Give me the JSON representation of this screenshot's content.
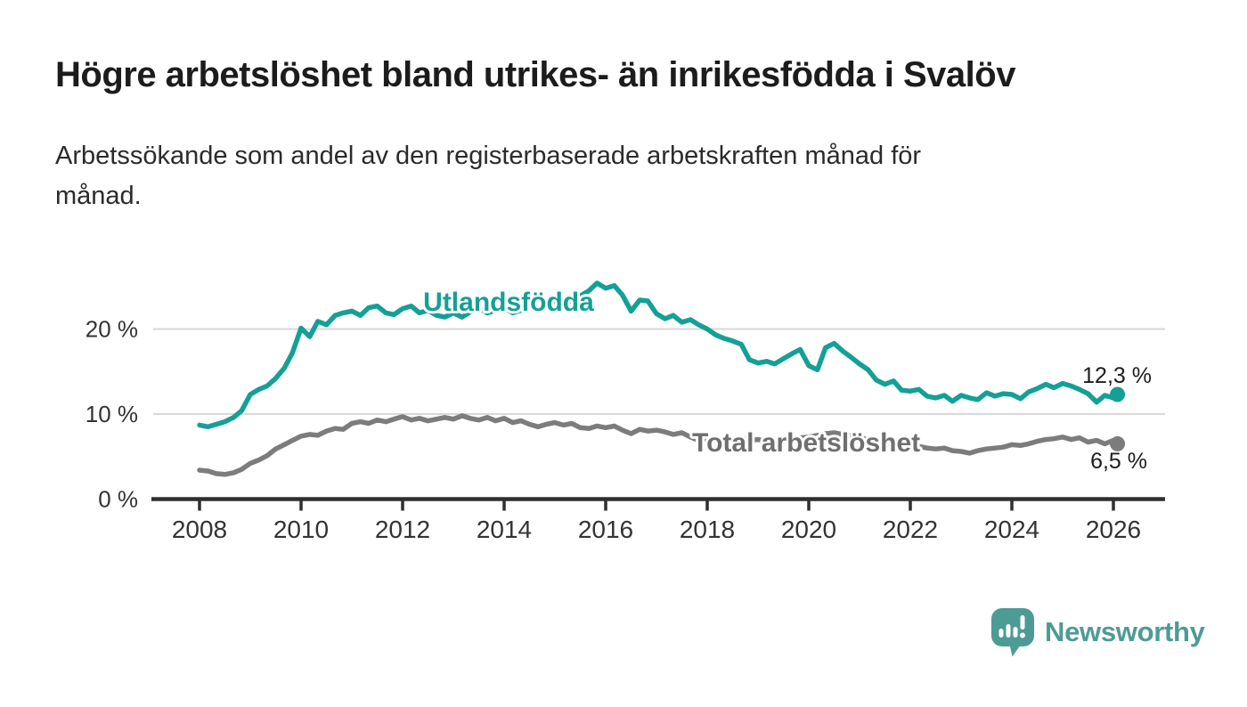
{
  "title": "Högre arbetslöshet bland utrikes- än inrikesfödda i Svalöv",
  "subtitle_lines": [
    "Arbetssökande som andel av den registerbaserade arbetskraften månad för",
    "månad."
  ],
  "branding": {
    "logo_text": "Newsworthy",
    "logo_color": "#4d9b95",
    "logo_icon": "bar-chart-speech-bubble-icon"
  },
  "colors": {
    "foreign_born_line": "#14a096",
    "total_line": "#7c7c7c",
    "total_label": "#6f6f6f",
    "axis": "#2f2f2f",
    "gridline": "#d8d8d8",
    "tick_label": "#333333",
    "value_label": "#1d1d1d"
  },
  "chart_data": {
    "type": "line",
    "title": "Högre arbetslöshet bland utrikes- än inrikesfödda i Svalöv",
    "subtitle": "Arbetssökande som andel av den registerbaserade arbetskraften månad för månad.",
    "unit": "%",
    "grid": "horizontal",
    "legend": "inline-labels-on-lines",
    "x_range": [
      2007.1,
      2026.9
    ],
    "ylim": [
      0,
      27
    ],
    "x_ticks": [
      2008,
      2010,
      2012,
      2014,
      2016,
      2018,
      2020,
      2022,
      2024,
      2026
    ],
    "y_ticks": [
      {
        "value": 0,
        "label": "0 %"
      },
      {
        "value": 10,
        "label": "10 %"
      },
      {
        "value": 20,
        "label": "20 %"
      }
    ],
    "series": [
      {
        "name": "Utlandsfödda",
        "color": "#14a096",
        "end_value": 12.3,
        "end_label": "12,3 %",
        "points": [
          [
            2008.0,
            8.7
          ],
          [
            2008.17,
            8.5
          ],
          [
            2008.33,
            8.8
          ],
          [
            2008.5,
            9.1
          ],
          [
            2008.67,
            9.6
          ],
          [
            2008.83,
            10.4
          ],
          [
            2009.0,
            12.3
          ],
          [
            2009.17,
            12.9
          ],
          [
            2009.33,
            13.3
          ],
          [
            2009.5,
            14.2
          ],
          [
            2009.67,
            15.4
          ],
          [
            2009.83,
            17.2
          ],
          [
            2010.0,
            20.1
          ],
          [
            2010.17,
            19.1
          ],
          [
            2010.33,
            20.9
          ],
          [
            2010.5,
            20.5
          ],
          [
            2010.67,
            21.6
          ],
          [
            2010.83,
            21.9
          ],
          [
            2011.0,
            22.1
          ],
          [
            2011.17,
            21.6
          ],
          [
            2011.33,
            22.5
          ],
          [
            2011.5,
            22.7
          ],
          [
            2011.67,
            21.9
          ],
          [
            2011.83,
            21.7
          ],
          [
            2012.0,
            22.4
          ],
          [
            2012.17,
            22.7
          ],
          [
            2012.33,
            21.9
          ],
          [
            2012.5,
            22.2
          ],
          [
            2012.67,
            21.6
          ],
          [
            2012.83,
            21.4
          ],
          [
            2013.0,
            21.9
          ],
          [
            2013.17,
            21.4
          ],
          [
            2013.33,
            22.0
          ],
          [
            2013.5,
            22.5
          ],
          [
            2013.67,
            21.9
          ],
          [
            2013.83,
            22.2
          ],
          [
            2014.0,
            22.5
          ],
          [
            2014.17,
            21.9
          ],
          [
            2014.33,
            22.2
          ],
          [
            2014.5,
            22.7
          ],
          [
            2014.67,
            22.4
          ],
          [
            2014.83,
            22.9
          ],
          [
            2015.0,
            23.2
          ],
          [
            2015.17,
            22.8
          ],
          [
            2015.33,
            23.4
          ],
          [
            2015.5,
            23.9
          ],
          [
            2015.67,
            24.5
          ],
          [
            2015.83,
            25.4
          ],
          [
            2016.0,
            24.8
          ],
          [
            2016.17,
            25.1
          ],
          [
            2016.33,
            24.0
          ],
          [
            2016.5,
            22.1
          ],
          [
            2016.67,
            23.4
          ],
          [
            2016.83,
            23.3
          ],
          [
            2017.0,
            21.8
          ],
          [
            2017.17,
            21.2
          ],
          [
            2017.33,
            21.6
          ],
          [
            2017.5,
            20.8
          ],
          [
            2017.67,
            21.1
          ],
          [
            2017.83,
            20.5
          ],
          [
            2018.0,
            20.0
          ],
          [
            2018.17,
            19.3
          ],
          [
            2018.33,
            18.9
          ],
          [
            2018.5,
            18.6
          ],
          [
            2018.67,
            18.2
          ],
          [
            2018.83,
            16.4
          ],
          [
            2019.0,
            16.0
          ],
          [
            2019.17,
            16.2
          ],
          [
            2019.33,
            15.9
          ],
          [
            2019.5,
            16.5
          ],
          [
            2019.67,
            17.1
          ],
          [
            2019.83,
            17.6
          ],
          [
            2020.0,
            15.7
          ],
          [
            2020.17,
            15.2
          ],
          [
            2020.33,
            17.8
          ],
          [
            2020.5,
            18.3
          ],
          [
            2020.67,
            17.4
          ],
          [
            2020.83,
            16.7
          ],
          [
            2021.0,
            15.9
          ],
          [
            2021.17,
            15.2
          ],
          [
            2021.33,
            14.0
          ],
          [
            2021.5,
            13.5
          ],
          [
            2021.67,
            13.9
          ],
          [
            2021.83,
            12.8
          ],
          [
            2022.0,
            12.7
          ],
          [
            2022.17,
            12.9
          ],
          [
            2022.33,
            12.1
          ],
          [
            2022.5,
            11.9
          ],
          [
            2022.67,
            12.2
          ],
          [
            2022.83,
            11.5
          ],
          [
            2023.0,
            12.2
          ],
          [
            2023.17,
            11.9
          ],
          [
            2023.33,
            11.7
          ],
          [
            2023.5,
            12.5
          ],
          [
            2023.67,
            12.1
          ],
          [
            2023.83,
            12.4
          ],
          [
            2024.0,
            12.3
          ],
          [
            2024.17,
            11.8
          ],
          [
            2024.33,
            12.6
          ],
          [
            2024.5,
            13.0
          ],
          [
            2024.67,
            13.5
          ],
          [
            2024.83,
            13.1
          ],
          [
            2025.0,
            13.6
          ],
          [
            2025.17,
            13.3
          ],
          [
            2025.33,
            12.9
          ],
          [
            2025.5,
            12.4
          ],
          [
            2025.67,
            11.4
          ],
          [
            2025.83,
            12.2
          ],
          [
            2026.0,
            11.9
          ],
          [
            2026.08,
            12.3
          ]
        ]
      },
      {
        "name": "Total arbetslöshet",
        "color": "#7c7c7c",
        "end_value": 6.5,
        "end_label": "6,5 %",
        "points": [
          [
            2008.0,
            3.4
          ],
          [
            2008.17,
            3.3
          ],
          [
            2008.33,
            3.0
          ],
          [
            2008.5,
            2.9
          ],
          [
            2008.67,
            3.1
          ],
          [
            2008.83,
            3.5
          ],
          [
            2009.0,
            4.2
          ],
          [
            2009.17,
            4.6
          ],
          [
            2009.33,
            5.1
          ],
          [
            2009.5,
            5.9
          ],
          [
            2009.67,
            6.4
          ],
          [
            2009.83,
            6.9
          ],
          [
            2010.0,
            7.4
          ],
          [
            2010.17,
            7.6
          ],
          [
            2010.33,
            7.5
          ],
          [
            2010.5,
            8.0
          ],
          [
            2010.67,
            8.3
          ],
          [
            2010.83,
            8.2
          ],
          [
            2011.0,
            8.9
          ],
          [
            2011.17,
            9.1
          ],
          [
            2011.33,
            8.9
          ],
          [
            2011.5,
            9.3
          ],
          [
            2011.67,
            9.1
          ],
          [
            2011.83,
            9.4
          ],
          [
            2012.0,
            9.7
          ],
          [
            2012.17,
            9.3
          ],
          [
            2012.33,
            9.5
          ],
          [
            2012.5,
            9.2
          ],
          [
            2012.67,
            9.4
          ],
          [
            2012.83,
            9.6
          ],
          [
            2013.0,
            9.4
          ],
          [
            2013.17,
            9.8
          ],
          [
            2013.33,
            9.5
          ],
          [
            2013.5,
            9.3
          ],
          [
            2013.67,
            9.6
          ],
          [
            2013.83,
            9.2
          ],
          [
            2014.0,
            9.5
          ],
          [
            2014.17,
            9.0
          ],
          [
            2014.33,
            9.2
          ],
          [
            2014.5,
            8.8
          ],
          [
            2014.67,
            8.5
          ],
          [
            2014.83,
            8.8
          ],
          [
            2015.0,
            9.0
          ],
          [
            2015.17,
            8.7
          ],
          [
            2015.33,
            8.9
          ],
          [
            2015.5,
            8.4
          ],
          [
            2015.67,
            8.3
          ],
          [
            2015.83,
            8.6
          ],
          [
            2016.0,
            8.4
          ],
          [
            2016.17,
            8.6
          ],
          [
            2016.33,
            8.1
          ],
          [
            2016.5,
            7.7
          ],
          [
            2016.67,
            8.2
          ],
          [
            2016.83,
            8.0
          ],
          [
            2017.0,
            8.1
          ],
          [
            2017.17,
            7.9
          ],
          [
            2017.33,
            7.6
          ],
          [
            2017.5,
            7.8
          ],
          [
            2017.67,
            7.3
          ],
          [
            2017.83,
            6.9
          ],
          [
            2018.0,
            7.1
          ],
          [
            2018.17,
            6.9
          ],
          [
            2018.33,
            7.1
          ],
          [
            2018.5,
            7.0
          ],
          [
            2018.67,
            7.2
          ],
          [
            2018.83,
            6.9
          ],
          [
            2019.0,
            7.0
          ],
          [
            2019.17,
            6.8
          ],
          [
            2019.33,
            6.9
          ],
          [
            2019.5,
            7.0
          ],
          [
            2019.67,
            7.1
          ],
          [
            2019.83,
            7.2
          ],
          [
            2020.0,
            7.3
          ],
          [
            2020.17,
            7.5
          ],
          [
            2020.33,
            7.7
          ],
          [
            2020.5,
            7.8
          ],
          [
            2020.67,
            7.6
          ],
          [
            2020.83,
            7.5
          ],
          [
            2021.0,
            7.2
          ],
          [
            2021.17,
            7.0
          ],
          [
            2021.33,
            6.8
          ],
          [
            2021.5,
            6.6
          ],
          [
            2021.67,
            6.4
          ],
          [
            2021.83,
            6.2
          ],
          [
            2022.0,
            6.1
          ],
          [
            2022.17,
            6.2
          ],
          [
            2022.33,
            6.0
          ],
          [
            2022.5,
            5.9
          ],
          [
            2022.67,
            6.0
          ],
          [
            2022.83,
            5.7
          ],
          [
            2023.0,
            5.6
          ],
          [
            2023.17,
            5.4
          ],
          [
            2023.33,
            5.7
          ],
          [
            2023.5,
            5.9
          ],
          [
            2023.67,
            6.0
          ],
          [
            2023.83,
            6.1
          ],
          [
            2024.0,
            6.4
          ],
          [
            2024.17,
            6.3
          ],
          [
            2024.33,
            6.5
          ],
          [
            2024.5,
            6.8
          ],
          [
            2024.67,
            7.0
          ],
          [
            2024.83,
            7.1
          ],
          [
            2025.0,
            7.3
          ],
          [
            2025.17,
            7.0
          ],
          [
            2025.33,
            7.2
          ],
          [
            2025.5,
            6.7
          ],
          [
            2025.67,
            6.9
          ],
          [
            2025.83,
            6.5
          ],
          [
            2026.0,
            6.9
          ],
          [
            2026.08,
            6.5
          ]
        ]
      }
    ]
  }
}
